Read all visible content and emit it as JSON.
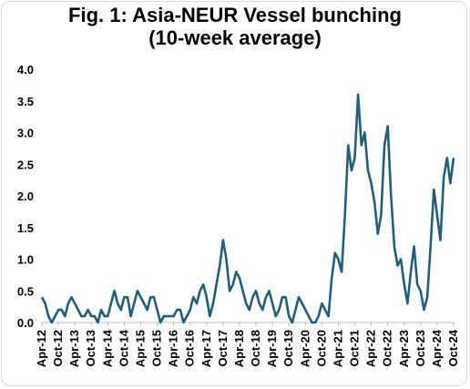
{
  "chart_data": {
    "type": "line",
    "title": "Fig. 1: Asia-NEUR Vessel bunching",
    "subtitle": "(10-week average)",
    "xlabel": "",
    "ylabel": "",
    "ylim": [
      0,
      4.0
    ],
    "yticks": [
      "0.0",
      "0.5",
      "1.0",
      "1.5",
      "2.0",
      "2.5",
      "3.0",
      "3.5",
      "4.0"
    ],
    "xticks": [
      "Apr-12",
      "Oct-12",
      "Apr-13",
      "Oct-13",
      "Apr-14",
      "Oct-14",
      "Apr-15",
      "Oct-15",
      "Apr-16",
      "Oct-16",
      "Apr-17",
      "Oct-17",
      "Apr-18",
      "Oct-18",
      "Apr-19",
      "Oct-19",
      "Apr-20",
      "Oct-20",
      "Apr-21",
      "Oct-21",
      "Apr-22",
      "Oct-22",
      "Apr-23",
      "Oct-23",
      "Apr-24",
      "Oct-24"
    ],
    "grid": false,
    "line_color": "#1f5f7a",
    "x": [
      0.0,
      0.2,
      0.4,
      0.6,
      0.8,
      1.0,
      1.2,
      1.4,
      1.6,
      1.8,
      2.0,
      2.2,
      2.4,
      2.6,
      2.8,
      3.0,
      3.2,
      3.4,
      3.6,
      3.8,
      4.0,
      4.2,
      4.4,
      4.6,
      4.8,
      5.0,
      5.2,
      5.4,
      5.6,
      5.8,
      6.0,
      6.2,
      6.4,
      6.6,
      6.8,
      7.0,
      7.2,
      7.4,
      7.6,
      7.8,
      8.0,
      8.2,
      8.4,
      8.6,
      8.8,
      9.0,
      9.2,
      9.4,
      9.6,
      9.8,
      10.0,
      10.2,
      10.4,
      10.6,
      10.8,
      11.0,
      11.2,
      11.4,
      11.6,
      11.8,
      12.0,
      12.2,
      12.4,
      12.6,
      12.8,
      13.0,
      13.2,
      13.4,
      13.6,
      13.8,
      14.0,
      14.2,
      14.4,
      14.6,
      14.8,
      15.0,
      15.2,
      15.4,
      15.6,
      15.8,
      16.0,
      16.2,
      16.4,
      16.6,
      16.8,
      17.0,
      17.2,
      17.4,
      17.6,
      17.8,
      18.0,
      18.2,
      18.4,
      18.6,
      18.8,
      19.0,
      19.2,
      19.4,
      19.6,
      19.8,
      20.0,
      20.2,
      20.4,
      20.6,
      20.8,
      21.0,
      21.2,
      21.4,
      21.6,
      21.8,
      22.0,
      22.2,
      22.4,
      22.6,
      22.8,
      23.0,
      23.2,
      23.4,
      23.6,
      23.8,
      24.0,
      24.2,
      24.4,
      24.6,
      24.8,
      25.0
    ],
    "series": [
      {
        "values": [
          0.4,
          0.3,
          0.1,
          0.0,
          0.1,
          0.2,
          0.2,
          0.1,
          0.3,
          0.4,
          0.3,
          0.2,
          0.1,
          0.1,
          0.2,
          0.1,
          0.1,
          0.0,
          0.2,
          0.1,
          0.1,
          0.3,
          0.5,
          0.3,
          0.2,
          0.4,
          0.4,
          0.1,
          0.3,
          0.5,
          0.4,
          0.3,
          0.2,
          0.4,
          0.4,
          0.2,
          0.0,
          0.1,
          0.1,
          0.1,
          0.1,
          0.2,
          0.2,
          0.0,
          0.1,
          0.2,
          0.4,
          0.3,
          0.5,
          0.6,
          0.4,
          0.1,
          0.3,
          0.6,
          0.9,
          1.3,
          1.0,
          0.5,
          0.6,
          0.8,
          0.7,
          0.5,
          0.3,
          0.2,
          0.4,
          0.5,
          0.3,
          0.2,
          0.4,
          0.5,
          0.3,
          0.1,
          0.2,
          0.4,
          0.4,
          0.1,
          0.0,
          0.2,
          0.4,
          0.3,
          0.2,
          0.1,
          0.0,
          0.0,
          0.1,
          0.3,
          0.2,
          0.1,
          0.7,
          1.1,
          1.0,
          0.8,
          1.7,
          2.8,
          2.4,
          2.6,
          3.6,
          2.8,
          3.0,
          2.4,
          2.2,
          1.9,
          1.4,
          1.7,
          2.8,
          3.1,
          2.0,
          1.2,
          0.9,
          1.0,
          0.6,
          0.3,
          0.8,
          1.2,
          0.6,
          0.5,
          0.2,
          0.4,
          1.2,
          2.1,
          1.7,
          1.3,
          2.3,
          2.6,
          2.2,
          2.6
        ]
      }
    ]
  }
}
